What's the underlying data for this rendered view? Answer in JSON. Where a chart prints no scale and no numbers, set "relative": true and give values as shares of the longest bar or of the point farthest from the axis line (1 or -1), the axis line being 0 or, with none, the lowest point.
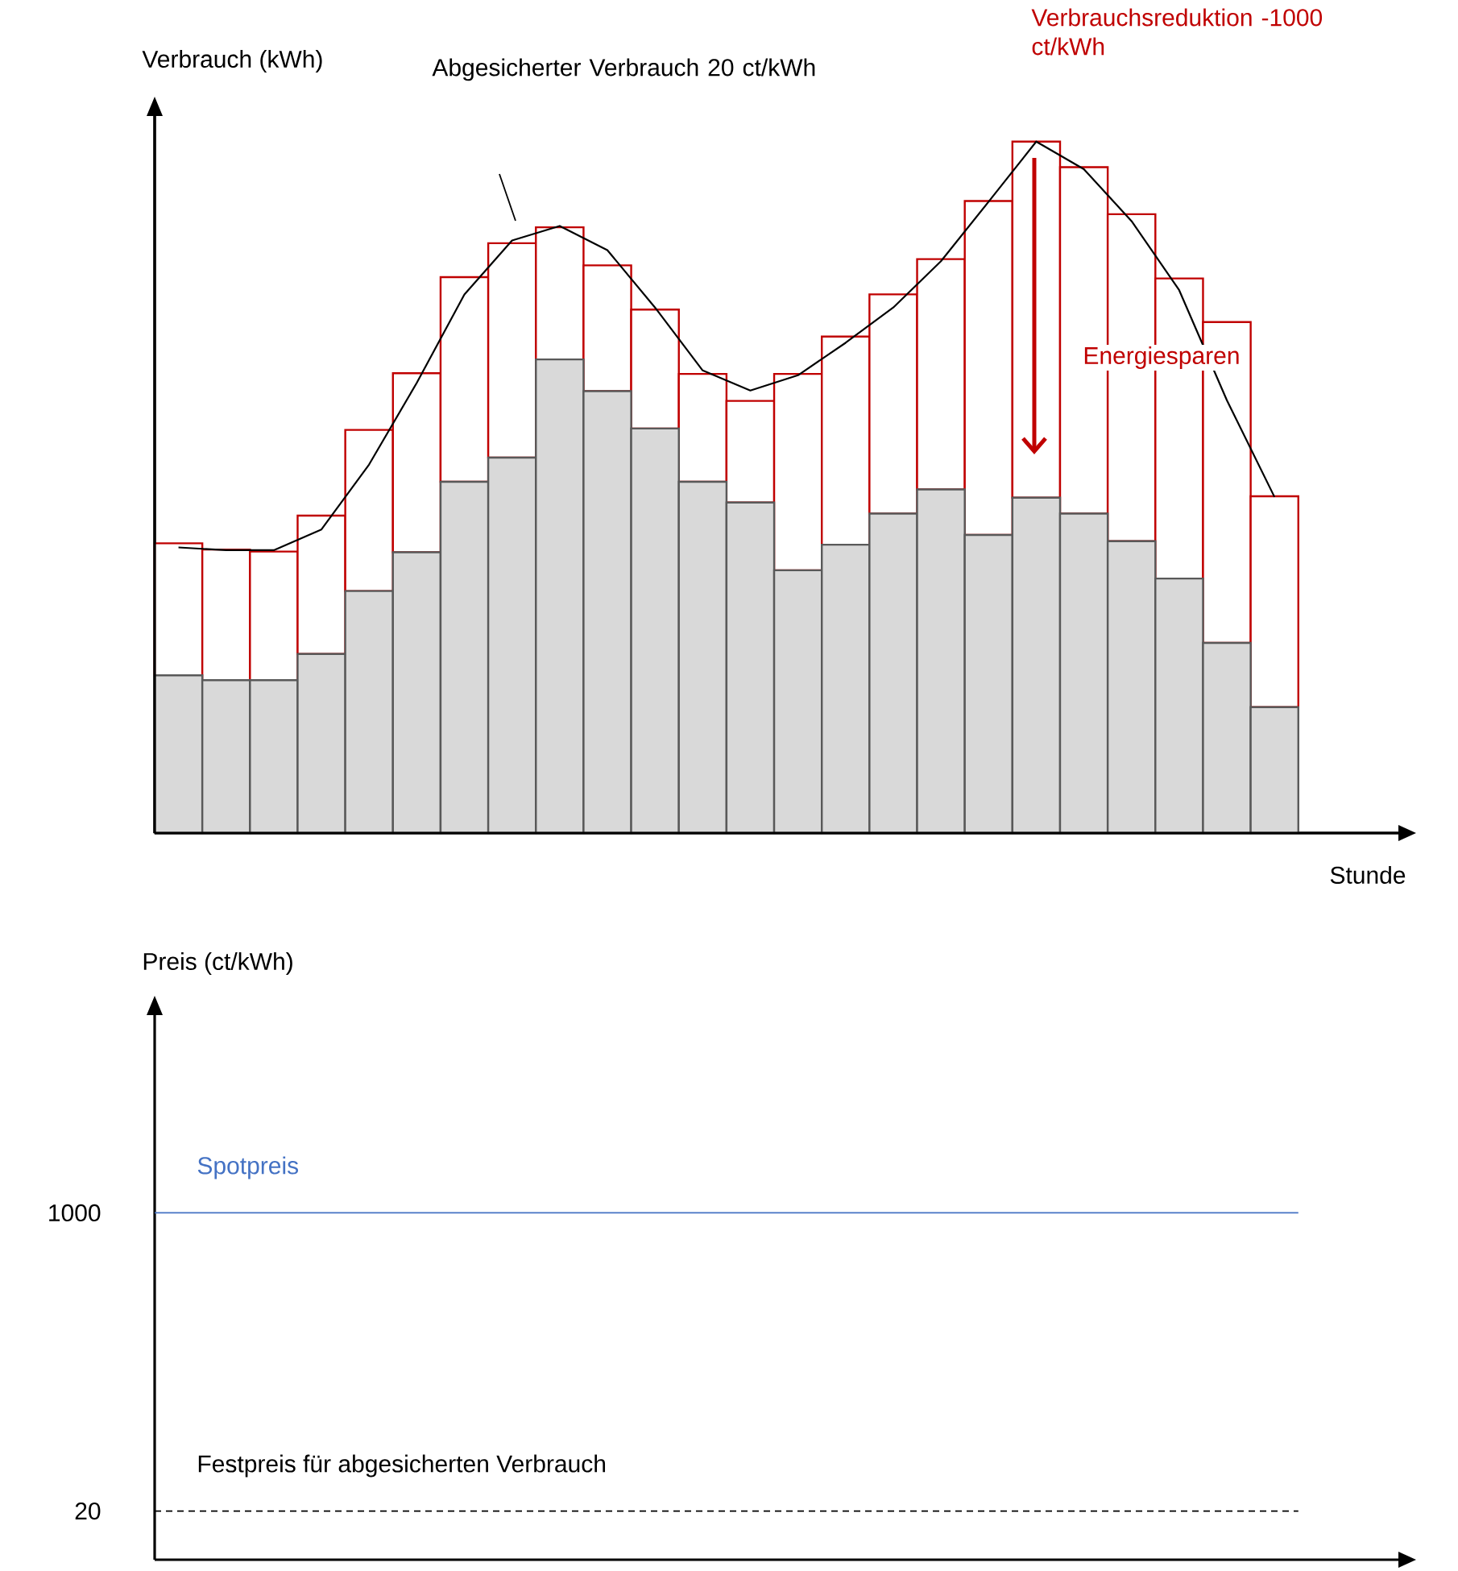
{
  "chart_data": [
    {
      "type": "bar",
      "stacked": true,
      "relative": true,
      "xlabel": "Stunde",
      "ylabel": "Verbrauch (kWh)",
      "categories": [
        null,
        null,
        null,
        null,
        null,
        null,
        null,
        null,
        null,
        null,
        null,
        null,
        null,
        null,
        null,
        null,
        null,
        null,
        null,
        null,
        null,
        null,
        null,
        null
      ],
      "series": [
        {
          "color": "#d9d9d9",
          "values": [
            0.228,
            0.221,
            0.221,
            0.259,
            0.35,
            0.406,
            0.508,
            0.543,
            0.685,
            0.639,
            0.585,
            0.508,
            0.478,
            0.38,
            0.417,
            0.462,
            0.497,
            0.431,
            0.485,
            0.462,
            0.422,
            0.368,
            0.275,
            0.182
          ]
        },
        {
          "name": "Verbrauchsreduktion -1000 ct/kWh",
          "color": "#c00000",
          "values": [
            0.191,
            0.189,
            0.186,
            0.2,
            0.233,
            0.259,
            0.296,
            0.31,
            0.191,
            0.182,
            0.172,
            0.156,
            0.147,
            0.284,
            0.301,
            0.317,
            0.333,
            0.483,
            0.515,
            0.501,
            0.473,
            0.434,
            0.464,
            0.305
          ]
        }
      ],
      "annotations": [
        "Energiesparen"
      ]
    },
    {
      "type": "line",
      "relative": true,
      "categories": [
        null,
        null,
        null,
        null,
        null,
        null,
        null,
        null,
        null,
        null,
        null,
        null,
        null,
        null,
        null,
        null,
        null,
        null,
        null,
        null,
        null,
        null,
        null,
        null
      ],
      "series": [
        {
          "name": "Abgesicherter Verbrauch 20 ct/kWh",
          "color": "#000000",
          "values": [
            0.413,
            0.409,
            0.409,
            0.439,
            0.533,
            0.651,
            0.779,
            0.857,
            0.878,
            0.843,
            0.76,
            0.669,
            0.64,
            0.662,
            0.709,
            0.76,
            0.827,
            0.913,
            1,
            0.96,
            0.885,
            0.785,
            0.626,
            0.486
          ]
        }
      ]
    },
    {
      "type": "line",
      "ylabel": "Preis (ct/kWh)",
      "categories": [
        null,
        null,
        null,
        null,
        null,
        null,
        null,
        null,
        null,
        null,
        null,
        null,
        null,
        null,
        null,
        null,
        null,
        null,
        null,
        null,
        null,
        null,
        null,
        null
      ],
      "ylim": [
        -140,
        1650
      ],
      "yticks": [
        20,
        1000
      ],
      "ref_lines": [
        {
          "axis": "y",
          "value": 1000,
          "label": "Spotpreis",
          "color": "#4472c4"
        },
        {
          "axis": "y",
          "value": 20,
          "label": "Festpreis für abgesicherten Verbrauch",
          "color": "#000000",
          "line_style": "dashed"
        }
      ]
    }
  ]
}
